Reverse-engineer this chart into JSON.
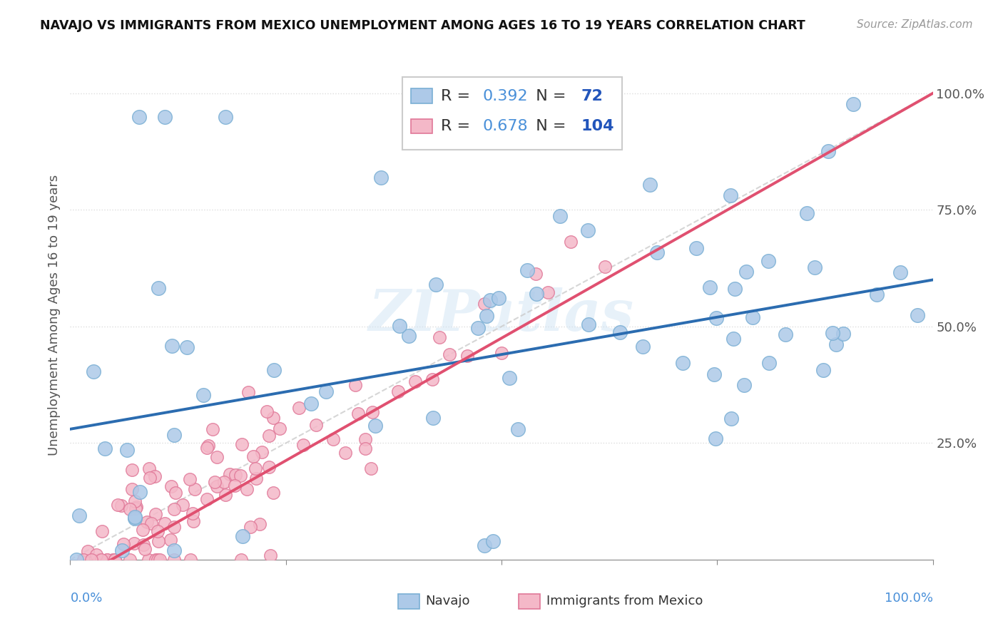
{
  "title": "NAVAJO VS IMMIGRANTS FROM MEXICO UNEMPLOYMENT AMONG AGES 16 TO 19 YEARS CORRELATION CHART",
  "source": "Source: ZipAtlas.com",
  "ylabel": "Unemployment Among Ages 16 to 19 years",
  "series1_name": "Navajo",
  "series1_color": "#adc9e8",
  "series1_edge_color": "#7aafd4",
  "series1_R": 0.392,
  "series1_N": 72,
  "series1_line_color": "#2b6cb0",
  "series2_name": "Immigrants from Mexico",
  "series2_color": "#f4b8c8",
  "series2_edge_color": "#e07898",
  "series2_R": 0.678,
  "series2_N": 104,
  "series2_line_color": "#e05070",
  "background_color": "#ffffff",
  "legend_value_color": "#4a90d9",
  "legend_N_color": "#2255bb",
  "watermark_color": "#d0e4f4",
  "grid_color": "#dddddd",
  "ref_line_color": "#cccccc"
}
